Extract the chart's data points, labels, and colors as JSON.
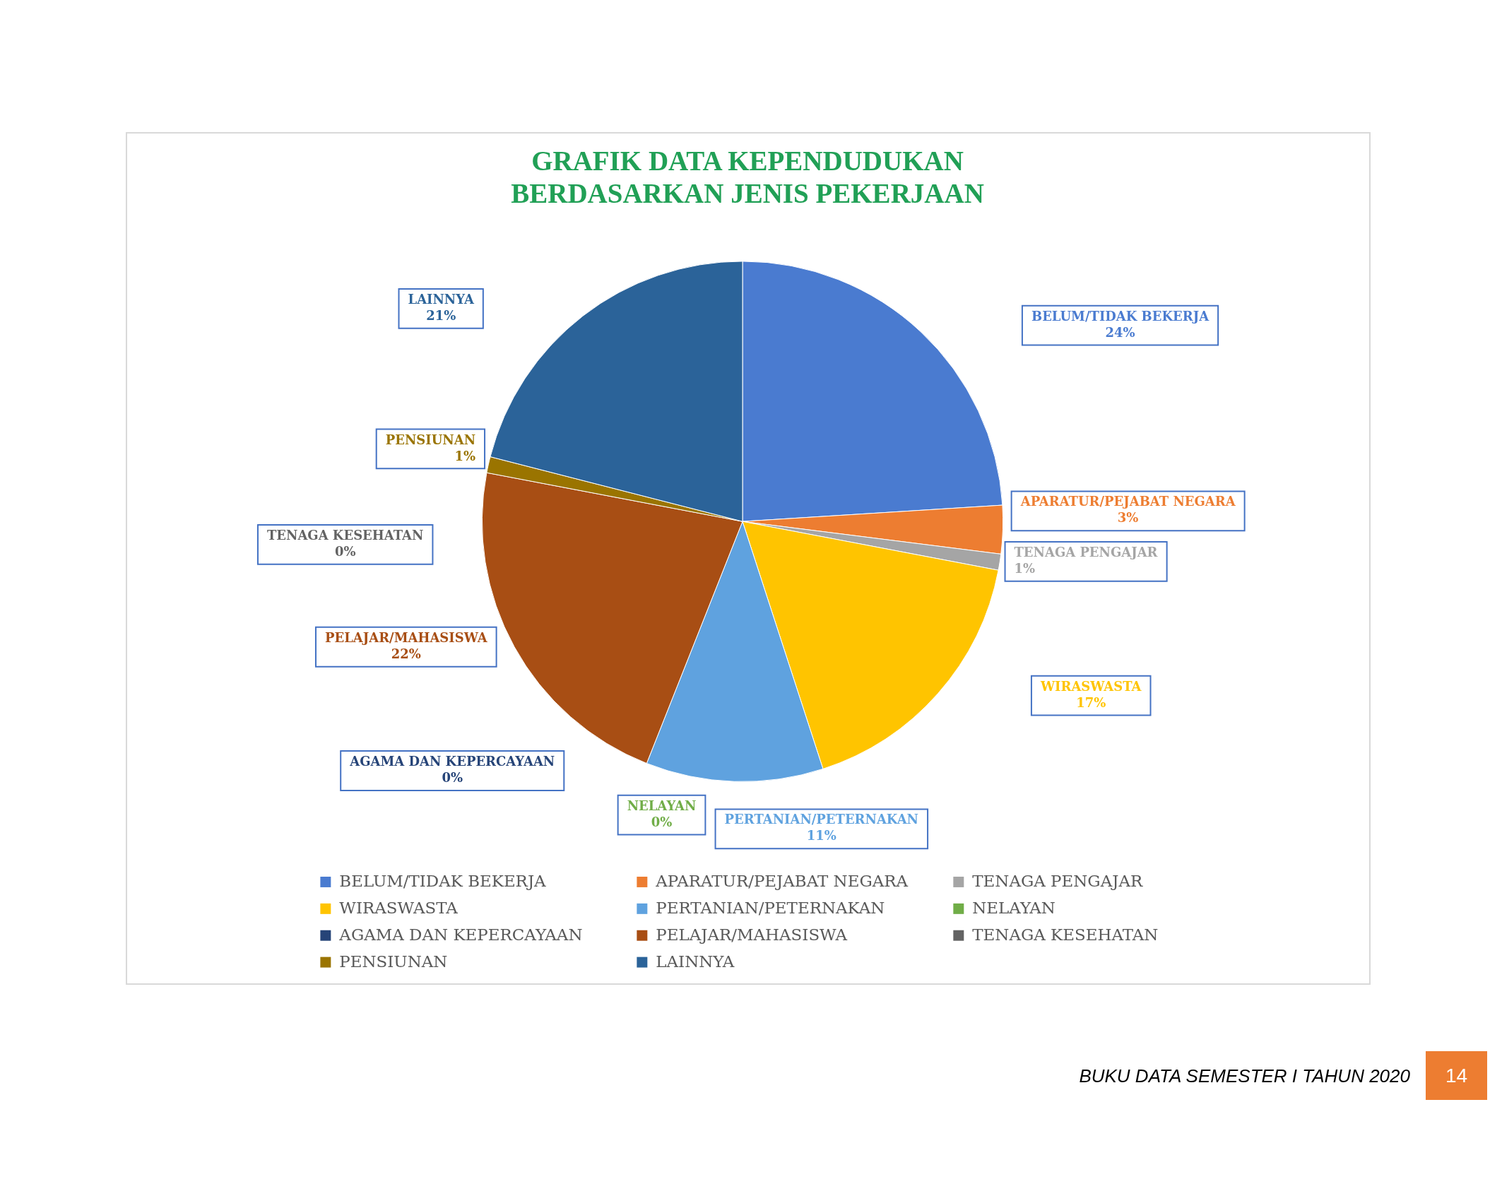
{
  "chart_data": {
    "type": "pie",
    "title": "GRAFIK DATA KEPENDUDUKAN BERDASARKAN JENIS PEKERJAAN",
    "categories": [
      "BELUM/TIDAK BEKERJA",
      "APARATUR/PEJABAT NEGARA",
      "TENAGA PENGAJAR",
      "WIRASWASTA",
      "PERTANIAN/PETERNAKAN",
      "NELAYAN",
      "AGAMA DAN KEPERCAYAAN",
      "PELAJAR/MAHASISWA",
      "TENAGA KESEHATAN",
      "PENSIUNAN",
      "LAINNYA"
    ],
    "values": [
      24,
      3,
      1,
      17,
      11,
      0,
      0,
      22,
      0,
      1,
      21
    ],
    "colors": [
      "#4a7bd0",
      "#ed7d31",
      "#a5a5a5",
      "#ffc400",
      "#5fa2df",
      "#70ad47",
      "#264478",
      "#a84e14",
      "#636363",
      "#9a7400",
      "#2b6399"
    ],
    "value_labels": [
      "24%",
      "3%",
      "1%",
      "17%",
      "11%",
      "0%",
      "0%",
      "22%",
      "0%",
      "1%",
      "21%"
    ],
    "legend": "bottom",
    "annotations": [
      "BUKU DATA SEMESTER I TAHUN 2020",
      "14"
    ]
  }
}
